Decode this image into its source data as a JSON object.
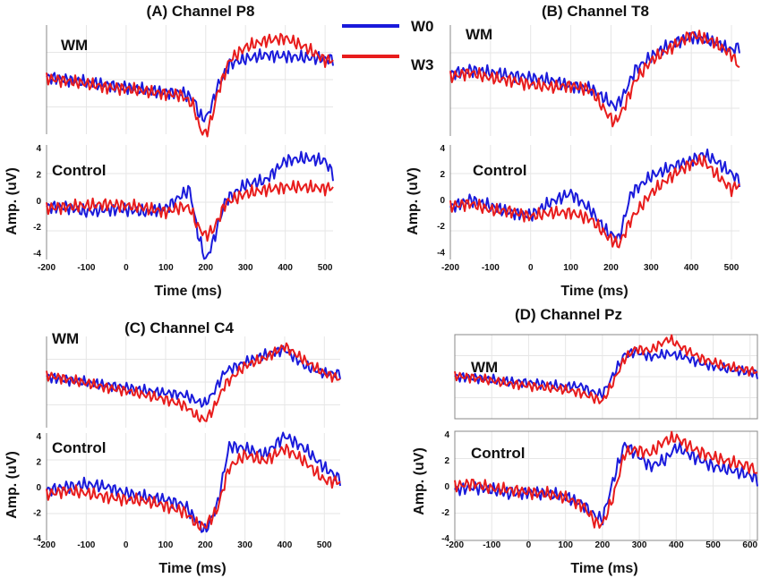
{
  "figure": {
    "legend": {
      "w0_label": "W0",
      "w3_label": "W3"
    },
    "colors": {
      "W0": "#1a1adb",
      "W3": "#e81c1c"
    },
    "axis_common": {
      "xlabel": "Time (ms)",
      "ylabel": "Amp. (uV)",
      "wm_label": "WM",
      "control_label": "Control"
    }
  },
  "chart_data": [
    {
      "type": "line",
      "title": "(A) Channel P8",
      "xlabel": "Time (ms)",
      "ylabel": "Amp. (uV)",
      "xlim": [
        -200,
        520
      ],
      "xticks": [
        -200,
        -100,
        0,
        100,
        200,
        300,
        400,
        500
      ],
      "panels": [
        {
          "condition": "WM",
          "ylim": [
            -4.2,
            4.2
          ],
          "yticks": [],
          "series": [
            {
              "name": "W0",
              "x": [
                -200,
                -150,
                -100,
                -50,
                0,
                50,
                100,
                140,
                170,
                185,
                200,
                215,
                230,
                260,
                300,
                350,
                400,
                450,
                500
              ],
              "values": [
                0.2,
                0.0,
                -0.2,
                -0.4,
                -0.6,
                -0.8,
                -1.0,
                -1.0,
                -1.5,
                -2.8,
                -3.0,
                -2.0,
                -0.5,
                1.2,
                1.6,
                1.9,
                1.8,
                1.7,
                1.6
              ]
            },
            {
              "name": "W3",
              "x": [
                -200,
                -150,
                -100,
                -50,
                0,
                50,
                100,
                140,
                170,
                185,
                200,
                215,
                230,
                260,
                300,
                350,
                400,
                450,
                500
              ],
              "values": [
                0.1,
                -0.1,
                -0.3,
                -0.6,
                -0.7,
                -0.9,
                -1.1,
                -1.2,
                -2.0,
                -3.8,
                -4.2,
                -3.0,
                -1.0,
                1.5,
                2.5,
                3.0,
                3.2,
                2.5,
                1.5
              ]
            }
          ]
        },
        {
          "condition": "Control",
          "ylim": [
            -4.5,
            4.2
          ],
          "yticks": [
            -4,
            -2,
            0,
            2,
            4
          ],
          "series": [
            {
              "name": "W0",
              "x": [
                -200,
                -150,
                -100,
                -50,
                0,
                50,
                100,
                140,
                160,
                180,
                200,
                220,
                250,
                300,
                350,
                400,
                450,
                500,
                520
              ],
              "values": [
                -0.5,
                -0.5,
                -0.9,
                -0.7,
                -0.7,
                -0.9,
                -0.6,
                0.4,
                0.8,
                -2.5,
                -4.6,
                -3.0,
                0.0,
                1.2,
                1.5,
                3.0,
                3.2,
                3.0,
                2.0
              ]
            },
            {
              "name": "W3",
              "x": [
                -200,
                -150,
                -100,
                -50,
                0,
                50,
                100,
                140,
                160,
                180,
                200,
                220,
                250,
                300,
                350,
                400,
                450,
                500,
                520
              ],
              "values": [
                -0.6,
                -0.5,
                -0.4,
                -0.3,
                -0.4,
                -0.6,
                -0.9,
                -0.5,
                -0.6,
                -2.0,
                -2.7,
                -2.2,
                -0.2,
                0.5,
                0.8,
                1.0,
                1.0,
                0.9,
                1.0
              ]
            }
          ]
        }
      ]
    },
    {
      "type": "line",
      "title": "(B) Channel T8",
      "xlabel": "Time (ms)",
      "ylabel": "Amp. (uV)",
      "xlim": [
        -200,
        520
      ],
      "xticks": [
        -200,
        -100,
        0,
        100,
        200,
        300,
        400,
        500
      ],
      "panels": [
        {
          "condition": "WM",
          "ylim": [
            -4.2,
            4.2
          ],
          "yticks": [],
          "series": [
            {
              "name": "W0",
              "x": [
                -200,
                -150,
                -100,
                -50,
                0,
                50,
                100,
                150,
                190,
                210,
                230,
                260,
                300,
                350,
                400,
                450,
                500,
                520
              ],
              "values": [
                0.5,
                0.8,
                0.6,
                0.4,
                0.2,
                0.0,
                -0.4,
                -0.6,
                -1.5,
                -2.0,
                -1.2,
                0.8,
                1.8,
                2.8,
                3.3,
                3.0,
                2.3,
                2.6
              ]
            },
            {
              "name": "W3",
              "x": [
                -200,
                -150,
                -100,
                -50,
                0,
                50,
                100,
                150,
                190,
                210,
                230,
                260,
                300,
                350,
                400,
                450,
                500,
                520
              ],
              "values": [
                0.3,
                0.6,
                0.2,
                0.0,
                -0.3,
                -0.5,
                -0.4,
                -0.7,
                -2.5,
                -3.2,
                -2.2,
                0.0,
                1.5,
                2.5,
                3.5,
                3.0,
                2.0,
                1.0
              ]
            }
          ]
        },
        {
          "condition": "Control",
          "ylim": [
            -4.6,
            4.2
          ],
          "yticks": [
            -4,
            -2,
            0,
            2,
            4
          ],
          "series": [
            {
              "name": "W0",
              "x": [
                -200,
                -150,
                -100,
                -50,
                0,
                50,
                100,
                150,
                190,
                220,
                250,
                300,
                350,
                400,
                430,
                460,
                500,
                520
              ],
              "values": [
                -0.6,
                0.0,
                -0.5,
                -1.0,
                -1.2,
                -0.2,
                0.5,
                -0.8,
                -2.5,
                -3.0,
                0.5,
                1.8,
                2.5,
                3.0,
                3.5,
                3.0,
                2.0,
                1.5
              ]
            },
            {
              "name": "W3",
              "x": [
                -200,
                -150,
                -100,
                -50,
                0,
                50,
                100,
                150,
                190,
                220,
                250,
                300,
                350,
                400,
                430,
                460,
                500,
                520
              ],
              "values": [
                -0.5,
                -0.3,
                -0.8,
                -0.9,
                -1.3,
                -1.0,
                -1.0,
                -1.5,
                -2.8,
                -3.5,
                -1.5,
                0.5,
                1.8,
                2.8,
                3.0,
                2.0,
                0.8,
                1.2
              ]
            }
          ]
        }
      ]
    },
    {
      "type": "line",
      "title": "(C) Channel C4",
      "xlabel": "Time (ms)",
      "ylabel": "Amp. (uV)",
      "xlim": [
        -200,
        540
      ],
      "xticks": [
        -200,
        -100,
        0,
        100,
        200,
        300,
        400,
        500
      ],
      "panels": [
        {
          "condition": "WM",
          "ylim": [
            -4.2,
            4.2
          ],
          "yticks": [],
          "series": [
            {
              "name": "W0",
              "x": [
                -200,
                -150,
                -100,
                -50,
                0,
                50,
                100,
                150,
                180,
                200,
                220,
                250,
                300,
                350,
                400,
                450,
                500,
                540
              ],
              "values": [
                0.5,
                0.2,
                0.0,
                -0.3,
                -0.5,
                -0.8,
                -1.0,
                -1.2,
                -1.8,
                -2.0,
                -1.0,
                1.0,
                1.8,
                2.5,
                3.0,
                1.5,
                0.8,
                0.8
              ]
            },
            {
              "name": "W3",
              "x": [
                -200,
                -150,
                -100,
                -50,
                0,
                50,
                100,
                150,
                180,
                200,
                220,
                250,
                300,
                350,
                400,
                450,
                500,
                540
              ],
              "values": [
                0.6,
                0.3,
                -0.1,
                -0.5,
                -0.8,
                -1.2,
                -1.6,
                -2.2,
                -3.2,
                -3.5,
                -2.5,
                -0.2,
                1.5,
                2.2,
                3.3,
                2.0,
                0.8,
                0.3
              ]
            }
          ]
        },
        {
          "condition": "Control",
          "ylim": [
            -4.2,
            4.2
          ],
          "yticks": [
            -4,
            -2,
            0,
            2,
            4
          ],
          "series": [
            {
              "name": "W0",
              "x": [
                -200,
                -150,
                -100,
                -50,
                0,
                50,
                100,
                150,
                180,
                200,
                230,
                260,
                300,
                350,
                400,
                450,
                500,
                540
              ],
              "values": [
                -0.3,
                0.0,
                0.2,
                0.0,
                -0.5,
                -0.8,
                -1.0,
                -1.5,
                -2.8,
                -3.5,
                -1.5,
                3.2,
                3.0,
                2.5,
                4.0,
                3.0,
                1.5,
                0.6
              ]
            },
            {
              "name": "W3",
              "x": [
                -200,
                -150,
                -100,
                -50,
                0,
                50,
                100,
                150,
                180,
                200,
                230,
                260,
                300,
                350,
                400,
                450,
                500,
                540
              ],
              "values": [
                -0.6,
                -0.3,
                -0.5,
                -0.8,
                -1.0,
                -1.1,
                -1.5,
                -2.0,
                -3.0,
                -3.1,
                -1.8,
                1.5,
                2.5,
                2.0,
                3.0,
                2.0,
                0.5,
                0.4
              ]
            }
          ]
        }
      ]
    },
    {
      "type": "line",
      "title": "(D) Channel Pz",
      "xlabel": "Time (ms)",
      "ylabel": "Amp. (uV)",
      "xlim": [
        -200,
        620
      ],
      "xticks": [
        -200,
        -100,
        0,
        100,
        200,
        300,
        400,
        500,
        600
      ],
      "panels": [
        {
          "condition": "WM",
          "ylim": [
            -4.2,
            4.2
          ],
          "yticks": [],
          "series": [
            {
              "name": "W0",
              "x": [
                -200,
                -150,
                -100,
                -50,
                0,
                50,
                100,
                140,
                170,
                200,
                230,
                260,
                290,
                330,
                380,
                420,
                470,
                520,
                570,
                620
              ],
              "values": [
                0.0,
                -0.1,
                -0.3,
                -0.5,
                -0.6,
                -0.8,
                -1.0,
                -0.9,
                -1.5,
                -1.8,
                0.2,
                2.2,
                2.5,
                2.0,
                2.3,
                2.0,
                1.3,
                0.9,
                0.6,
                0.3
              ]
            },
            {
              "name": "W3",
              "x": [
                -200,
                -150,
                -100,
                -50,
                0,
                50,
                100,
                140,
                170,
                200,
                230,
                260,
                290,
                330,
                380,
                420,
                470,
                520,
                570,
                620
              ],
              "values": [
                0.1,
                -0.1,
                -0.4,
                -0.7,
                -0.9,
                -1.1,
                -1.3,
                -1.6,
                -2.0,
                -2.5,
                -0.5,
                1.8,
                2.8,
                2.6,
                3.8,
                2.8,
                1.8,
                1.2,
                0.8,
                0.5
              ]
            }
          ]
        },
        {
          "condition": "Control",
          "ylim": [
            -4.2,
            4.2
          ],
          "yticks": [
            -4,
            -2,
            0,
            2,
            4
          ],
          "series": [
            {
              "name": "W0",
              "x": [
                -200,
                -150,
                -100,
                -50,
                0,
                50,
                100,
                150,
                180,
                200,
                230,
                260,
                290,
                330,
                370,
                400,
                450,
                500,
                550,
                600,
                620
              ],
              "values": [
                -0.3,
                -0.1,
                -0.3,
                -0.6,
                -0.5,
                -0.6,
                -0.8,
                -1.5,
                -2.3,
                -2.6,
                0.5,
                3.2,
                2.5,
                1.5,
                2.0,
                3.0,
                2.2,
                1.5,
                1.2,
                0.8,
                0.5
              ]
            },
            {
              "name": "W3",
              "x": [
                -200,
                -150,
                -100,
                -50,
                0,
                50,
                100,
                150,
                180,
                200,
                230,
                260,
                290,
                330,
                370,
                400,
                450,
                500,
                550,
                600,
                620
              ],
              "values": [
                0.0,
                0.2,
                -0.2,
                -0.3,
                -0.5,
                -0.6,
                -0.9,
                -1.6,
                -2.8,
                -3.0,
                -0.8,
                2.5,
                2.8,
                2.5,
                3.5,
                3.7,
                2.8,
                2.2,
                1.8,
                1.5,
                1.0
              ]
            }
          ]
        }
      ]
    }
  ]
}
